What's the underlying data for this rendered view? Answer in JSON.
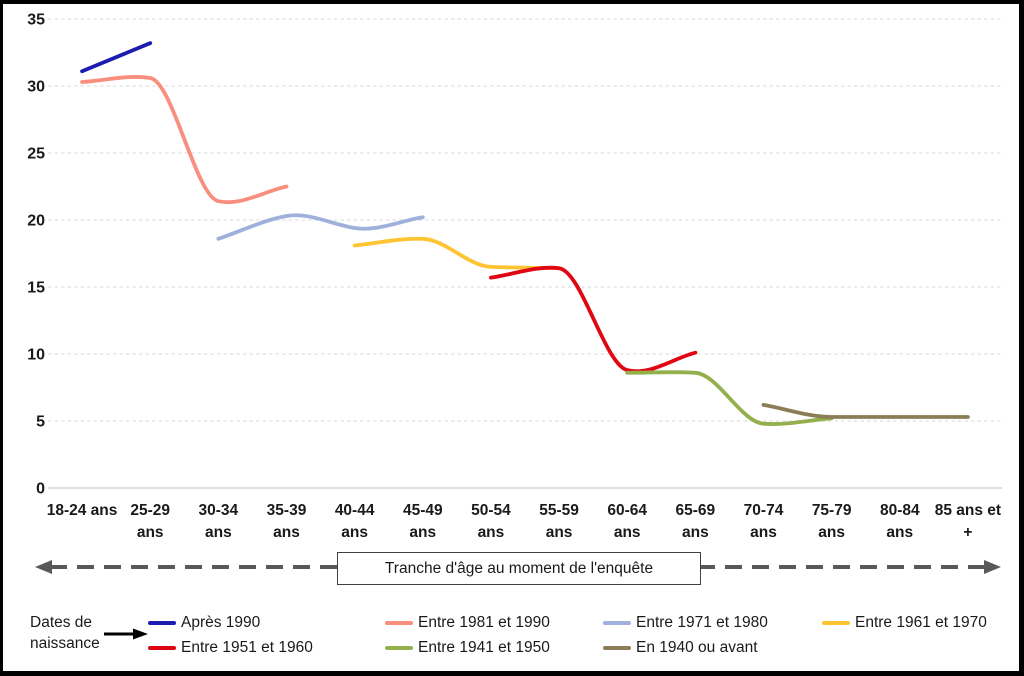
{
  "chart_data": {
    "type": "line",
    "title": "",
    "x_axis_label": "Tranche d'âge au moment de l'enquête",
    "legend_title": "Dates de naissance",
    "categories": [
      "18-24 ans",
      "25-29 ans",
      "30-34 ans",
      "35-39 ans",
      "40-44 ans",
      "45-49 ans",
      "50-54 ans",
      "55-59 ans",
      "60-64 ans",
      "65-69 ans",
      "70-74 ans",
      "75-79 ans",
      "80-84 ans",
      "85 ans et +"
    ],
    "category_label_lines": [
      [
        "18-24 ans"
      ],
      [
        "25-29",
        "ans"
      ],
      [
        "30-34",
        "ans"
      ],
      [
        "35-39",
        "ans"
      ],
      [
        "40-44",
        "ans"
      ],
      [
        "45-49",
        "ans"
      ],
      [
        "50-54",
        "ans"
      ],
      [
        "55-59",
        "ans"
      ],
      [
        "60-64",
        "ans"
      ],
      [
        "65-69",
        "ans"
      ],
      [
        "70-74",
        "ans"
      ],
      [
        "75-79",
        "ans"
      ],
      [
        "80-84",
        "ans"
      ],
      [
        "85 ans et",
        "+"
      ]
    ],
    "y_axis": {
      "min": 0,
      "max": 35,
      "step": 5,
      "ticks": [
        0,
        5,
        10,
        15,
        20,
        25,
        30,
        35
      ]
    },
    "grid": "horizontal-dashed",
    "legend_position": "bottom",
    "series": [
      {
        "name": "Après 1990",
        "slug": "apres-1990",
        "color": "#1c1cb0",
        "start": 0,
        "values": [
          31.1,
          33.2
        ]
      },
      {
        "name": "Entre 1981 et 1990",
        "slug": "entre-1981-1990",
        "color": "#f88e7e",
        "start": 0,
        "values": [
          30.3,
          30.6,
          21.4,
          22.5
        ]
      },
      {
        "name": "Entre 1971 et 1980",
        "slug": "entre-1971-1980",
        "color": "#9fb0dc",
        "start": 2,
        "values": [
          18.6,
          20.3,
          19.4,
          20.2
        ]
      },
      {
        "name": "Entre 1961 et 1970",
        "slug": "entre-1961-1970",
        "color": "#ffc432",
        "start": 4,
        "values": [
          18.1,
          18.6,
          16.5,
          16.4
        ]
      },
      {
        "name": "Entre 1951 et 1960",
        "slug": "entre-1951-1960",
        "color": "#e00613",
        "start": 6,
        "values": [
          15.7,
          16.4,
          8.8,
          10.1
        ]
      },
      {
        "name": "Entre 1941 et 1950",
        "slug": "entre-1941-1950",
        "color": "#94b04c",
        "start": 8,
        "values": [
          8.6,
          8.6,
          4.8,
          5.2
        ]
      },
      {
        "name": "En 1940 ou avant",
        "slug": "en-1940-ou-avant",
        "color": "#8b7d56",
        "start": 10,
        "values": [
          6.2,
          5.3,
          5.3,
          5.3
        ]
      }
    ],
    "colors": {
      "gridline": "#d9d9d9",
      "axis_line": "#bfbfbf",
      "arrow": "#595959",
      "text": "#1a1a1a"
    }
  }
}
